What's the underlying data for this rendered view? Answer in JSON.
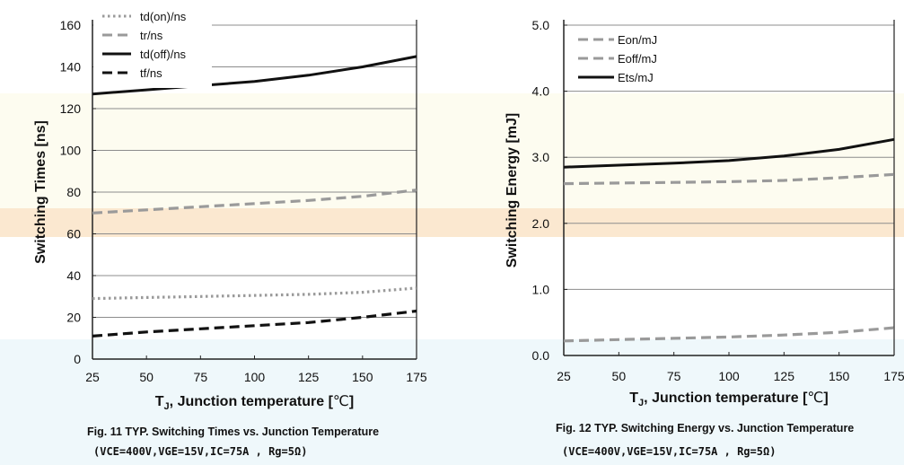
{
  "chart_data": [
    {
      "type": "line",
      "xlabel": "T",
      "xlabel_sub": "J",
      "xlabel_rest": ", Junction temperature [",
      "xlabel_unit": "℃",
      "xlabel_close": "]",
      "ylabel": "Switching Times [ns]",
      "xlim": [
        25,
        175
      ],
      "ylim": [
        0,
        160
      ],
      "xticks": [
        25,
        50,
        75,
        100,
        125,
        150,
        175
      ],
      "yticks": [
        0,
        20,
        40,
        60,
        80,
        100,
        120,
        140,
        160
      ],
      "grid": true,
      "legend_position": "top-left",
      "x": [
        25,
        50,
        75,
        100,
        125,
        150,
        175
      ],
      "series": [
        {
          "name": "td(on)/ns",
          "style": "dotted",
          "color": "#9a9a9a",
          "values": [
            29,
            29.5,
            30,
            30.5,
            31,
            32,
            34
          ]
        },
        {
          "name": "tr/ns",
          "style": "dashed",
          "color": "#9a9a9a",
          "values": [
            70,
            71.5,
            73,
            74.5,
            76,
            78,
            81
          ]
        },
        {
          "name": "td(off)/ns",
          "style": "solid",
          "color": "#111111",
          "values": [
            127,
            129,
            131,
            133,
            136,
            140,
            145
          ]
        },
        {
          "name": "tf/ns",
          "style": "dashed",
          "color": "#111111",
          "values": [
            11,
            13,
            14.5,
            16,
            17.5,
            20,
            23
          ]
        }
      ],
      "caption": "Fig. 11 TYP. Switching Times vs. Junction Temperature",
      "conditions": "(VCE=400V,VGE=15V,IC=75A , Rg=5Ω)"
    },
    {
      "type": "line",
      "xlabel": "T",
      "xlabel_sub": "J",
      "xlabel_rest": ", Junction temperature [",
      "xlabel_unit": "℃",
      "xlabel_close": "]",
      "ylabel": "Switching Energy [mJ]",
      "xlim": [
        25,
        175
      ],
      "ylim": [
        0,
        5
      ],
      "xticks": [
        25,
        50,
        75,
        100,
        125,
        150,
        175
      ],
      "yticks": [
        "0.0",
        "1.0",
        "2.0",
        "3.0",
        "4.0",
        "5.0"
      ],
      "grid": true,
      "legend_position": "top-left",
      "x": [
        25,
        50,
        75,
        100,
        125,
        150,
        175
      ],
      "series": [
        {
          "name": "Eon/mJ",
          "style": "dashed",
          "color": "#9a9a9a",
          "values": [
            0.22,
            0.24,
            0.26,
            0.28,
            0.31,
            0.35,
            0.42
          ]
        },
        {
          "name": "Eoff/mJ",
          "style": "dashed",
          "color": "#9a9a9a",
          "values": [
            2.6,
            2.61,
            2.62,
            2.63,
            2.65,
            2.69,
            2.74
          ]
        },
        {
          "name": "Ets/mJ",
          "style": "solid",
          "color": "#111111",
          "values": [
            2.85,
            2.88,
            2.91,
            2.95,
            3.02,
            3.12,
            3.27
          ]
        }
      ],
      "caption": "Fig. 12 TYP. Switching Energy vs. Junction Temperature",
      "conditions": "(VCE=400V,VGE=15V,IC=75A , Rg=5Ω)"
    }
  ]
}
